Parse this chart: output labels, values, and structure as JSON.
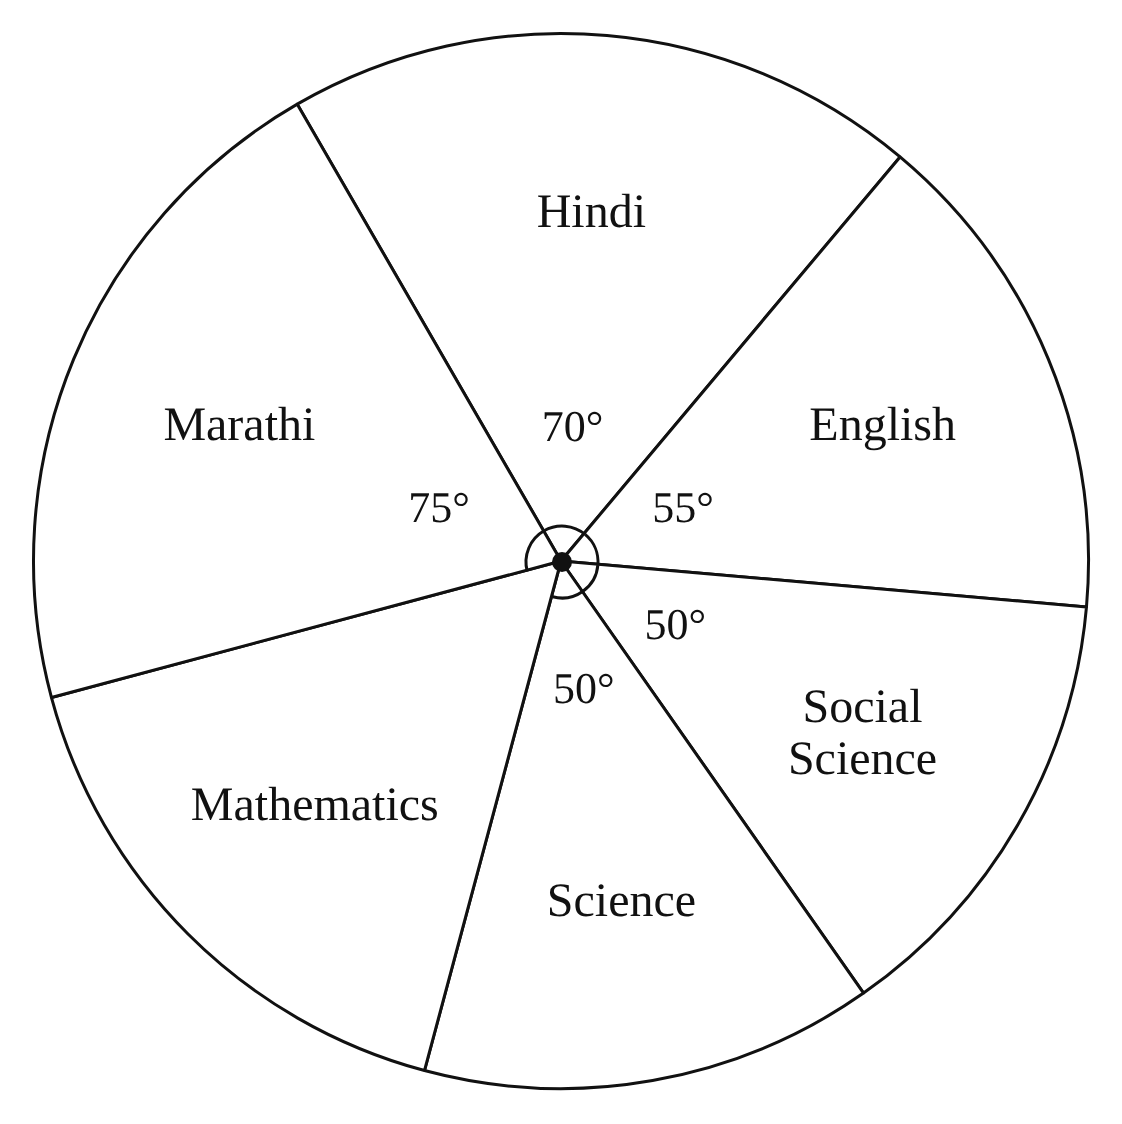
{
  "chart_data": {
    "type": "pie",
    "categories": [
      "Hindi",
      "English",
      "Social Science",
      "Science",
      "Mathematics",
      "Marathi"
    ],
    "values": [
      70,
      55,
      50,
      50,
      60,
      75
    ],
    "colors": [
      "#ffffff",
      "#ffffff",
      "#ffffff",
      "#ffffff",
      "#ffffff",
      "#ffffff"
    ],
    "value_labels": [
      "70°",
      "55°",
      "50°",
      "50°",
      null,
      "75°"
    ],
    "legend": false
  }
}
